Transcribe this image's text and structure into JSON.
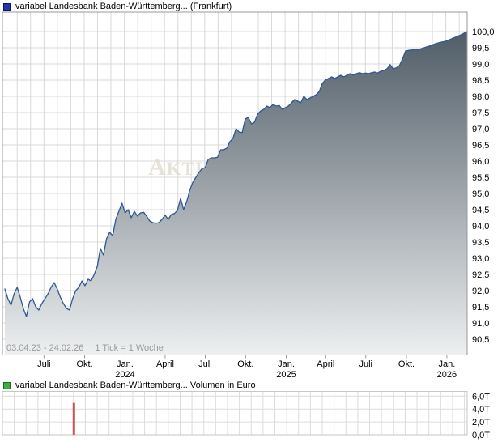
{
  "price_chart": {
    "legend_label": "variabel Landesbank Baden-Württemberg... (Frankfurt)",
    "marker_color": "#2236a8",
    "marker_border": "#0d1660",
    "range_label": "03.04.23 - 24.02.26",
    "tick_note": "1 Tick = 1 Woche",
    "watermark": "Aktiencheck"
  },
  "volume_chart": {
    "legend_label": "variabel Landesbank Baden-Württemberg... Volumen in Euro",
    "marker_color": "#3fae3f",
    "marker_border": "#1e6b1e"
  },
  "chart_data": [
    {
      "type": "area",
      "title": "variabel Landesbank Baden-Württemberg... (Frankfurt)",
      "exchange": "Frankfurt",
      "x_range": {
        "start": "03.04.23",
        "end": "24.02.26",
        "interval": "1 Tick = 1 Woche"
      },
      "ylim": [
        90.5,
        100.0
      ],
      "y_tick_step": 0.5,
      "grid": true,
      "legend_position": "top-left",
      "x_ticks": [
        {
          "label": "Juli",
          "week": 12.7
        },
        {
          "label": "Okt.",
          "week": 25.9
        },
        {
          "label": "Jan.",
          "sublabel": "2024",
          "week": 39.0
        },
        {
          "label": "April",
          "week": 52.0
        },
        {
          "label": "Juli",
          "week": 65.0
        },
        {
          "label": "Okt.",
          "week": 78.1
        },
        {
          "label": "Jan.",
          "sublabel": "2025",
          "week": 91.3
        },
        {
          "label": "April",
          "week": 104.1
        },
        {
          "label": "Juli",
          "week": 117.1
        },
        {
          "label": "Okt.",
          "week": 130.3
        },
        {
          "label": "Jan.",
          "sublabel": "2026",
          "week": 143.4
        }
      ],
      "series": [
        {
          "name": "variabel Landesbank Baden-Württemberg... (Frankfurt)",
          "x_unit": "week",
          "values": [
            92.05,
            91.75,
            91.55,
            91.9,
            92.1,
            91.8,
            91.45,
            91.2,
            91.65,
            91.75,
            91.5,
            91.4,
            91.6,
            91.75,
            91.9,
            92.1,
            92.25,
            92.05,
            91.8,
            91.6,
            91.45,
            91.4,
            91.75,
            92.0,
            92.1,
            92.3,
            92.15,
            92.35,
            92.3,
            92.5,
            92.75,
            93.3,
            93.1,
            93.6,
            93.8,
            93.7,
            94.2,
            94.45,
            94.7,
            94.4,
            94.5,
            94.25,
            94.45,
            94.3,
            94.4,
            94.42,
            94.3,
            94.15,
            94.1,
            94.08,
            94.1,
            94.2,
            94.33,
            94.2,
            94.35,
            94.38,
            94.48,
            94.85,
            94.5,
            94.75,
            95.1,
            95.35,
            95.5,
            95.65,
            95.77,
            95.8,
            96.05,
            96.1,
            96.1,
            96.12,
            96.35,
            96.35,
            96.4,
            96.6,
            96.7,
            97.0,
            96.9,
            96.88,
            97.3,
            97.35,
            97.15,
            97.2,
            97.45,
            97.55,
            97.6,
            97.7,
            97.65,
            97.75,
            97.7,
            97.72,
            97.6,
            97.65,
            97.7,
            97.8,
            97.9,
            97.85,
            97.8,
            98.0,
            97.9,
            97.95,
            98.0,
            98.05,
            98.15,
            98.4,
            98.5,
            98.55,
            98.6,
            98.55,
            98.6,
            98.65,
            98.6,
            98.65,
            98.7,
            98.65,
            98.7,
            98.73,
            98.7,
            98.72,
            98.7,
            98.73,
            98.75,
            98.72,
            98.78,
            98.8,
            98.85,
            98.98,
            98.85,
            98.88,
            98.95,
            99.15,
            99.4,
            99.42,
            99.43,
            99.45,
            99.44,
            99.47,
            99.5,
            99.53,
            99.56,
            99.6,
            99.63,
            99.66,
            99.68,
            99.7,
            99.74,
            99.78,
            99.82,
            99.86,
            99.9,
            99.95,
            100.0
          ]
        }
      ],
      "colors": {
        "line": "#2f5795",
        "fill_top": "#47545f",
        "fill_bottom": "#edeff0",
        "grid": "#d9d9d9",
        "border": "#999999",
        "axis_text": "#000000",
        "range_text": "#9a9a9a",
        "watermark": "#e7e3d9"
      }
    },
    {
      "type": "bar",
      "title": "variabel Landesbank Baden-Württemberg... Volumen in Euro",
      "unit": "Euro",
      "ylim": [
        0,
        6000
      ],
      "y_ticks": [
        {
          "value": 0,
          "label": "0,0T"
        },
        {
          "value": 2000,
          "label": "2,0T"
        },
        {
          "value": 4000,
          "label": "4,0T"
        },
        {
          "value": 6000,
          "label": "6,0T"
        }
      ],
      "bars": [
        {
          "week": 22.4,
          "value_eur": 4950
        }
      ],
      "colors": {
        "bar": "#c4524e",
        "grid": "#dcdcdc",
        "border": "#c6c6c6",
        "axis_text": "#000000"
      }
    }
  ]
}
